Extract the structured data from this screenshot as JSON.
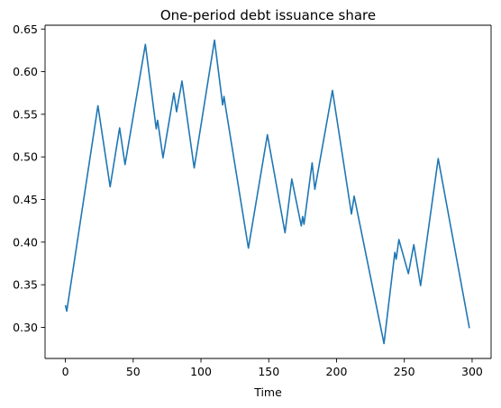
{
  "chart_data": {
    "type": "line",
    "title": "One-period debt issuance share",
    "xlabel": "Time",
    "ylabel": "",
    "xlim": [
      -15,
      314
    ],
    "ylim": [
      0.2635,
      0.6545
    ],
    "x_ticks": [
      0,
      50,
      100,
      150,
      200,
      250,
      300
    ],
    "x_tick_labels": [
      "0",
      "50",
      "100",
      "150",
      "200",
      "250",
      "300"
    ],
    "y_ticks": [
      0.3,
      0.35,
      0.4,
      0.45,
      0.5,
      0.55,
      0.6,
      0.65
    ],
    "y_tick_labels": [
      "0.30",
      "0.35",
      "0.40",
      "0.45",
      "0.50",
      "0.55",
      "0.60",
      "0.65"
    ],
    "grid": false,
    "colors": {
      "line": "#1f77b4",
      "axes": "#000000",
      "background": "#ffffff"
    },
    "series": [
      {
        "x": [
          0,
          1,
          24,
          33,
          40,
          44,
          59,
          67,
          68,
          72,
          80,
          82,
          86,
          95,
          110,
          116,
          117,
          118,
          135,
          149,
          162,
          167,
          174,
          175,
          176,
          182,
          184,
          197,
          211,
          213,
          235,
          243,
          244,
          246,
          253,
          257,
          262,
          275,
          298
        ],
        "y": [
          0.326,
          0.319,
          0.56,
          0.465,
          0.534,
          0.491,
          0.632,
          0.533,
          0.543,
          0.499,
          0.575,
          0.553,
          0.589,
          0.487,
          0.637,
          0.561,
          0.571,
          0.56,
          0.393,
          0.526,
          0.411,
          0.474,
          0.419,
          0.43,
          0.421,
          0.493,
          0.462,
          0.578,
          0.433,
          0.454,
          0.281,
          0.388,
          0.38,
          0.403,
          0.363,
          0.397,
          0.349,
          0.498,
          0.299
        ]
      }
    ]
  }
}
